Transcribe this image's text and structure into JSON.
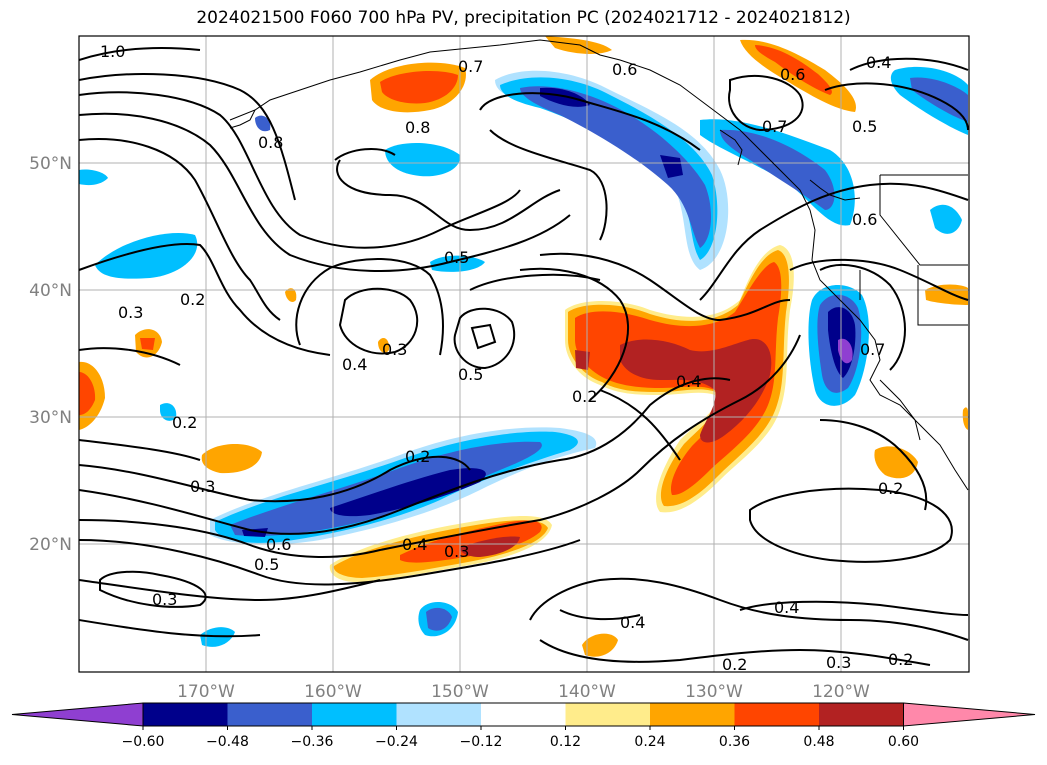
{
  "title": "2024021500 F060 700 hPa PV, precipitation PC (2024021712 - 2024021812)",
  "map": {
    "lat_labels": [
      "50°N",
      "40°N",
      "30°N",
      "20°N"
    ],
    "lon_labels": [
      "170°W",
      "160°W",
      "150°W",
      "140°W",
      "130°W",
      "120°W"
    ],
    "contour_labels": [
      "1.0",
      "0.7",
      "0.6",
      "0.6",
      "0.4",
      "0.5",
      "0.8",
      "0.8",
      "0.7",
      "0.6",
      "0.5",
      "0.2",
      "0.3",
      "0.3",
      "0.4",
      "0.5",
      "0.2",
      "0.4",
      "0.2",
      "0.2",
      "0.3",
      "0.4",
      "0.3",
      "0.6",
      "0.5",
      "0.3",
      "0.4",
      "0.2",
      "0.4",
      "0.3",
      "0.2",
      "0.2",
      "0.7"
    ]
  },
  "colorbar": {
    "ticks": [
      "−0.60",
      "−0.48",
      "−0.36",
      "−0.24",
      "−0.12",
      "0.12",
      "0.24",
      "0.36",
      "0.48",
      "0.60"
    ],
    "colors": [
      "#8f3fd1",
      "#00008b",
      "#3a5fcd",
      "#00bfff",
      "#b0e2ff",
      "#ffffff",
      "#ffec8b",
      "#ffa500",
      "#ff4500",
      "#b22222",
      "#ff88aa"
    ]
  }
}
